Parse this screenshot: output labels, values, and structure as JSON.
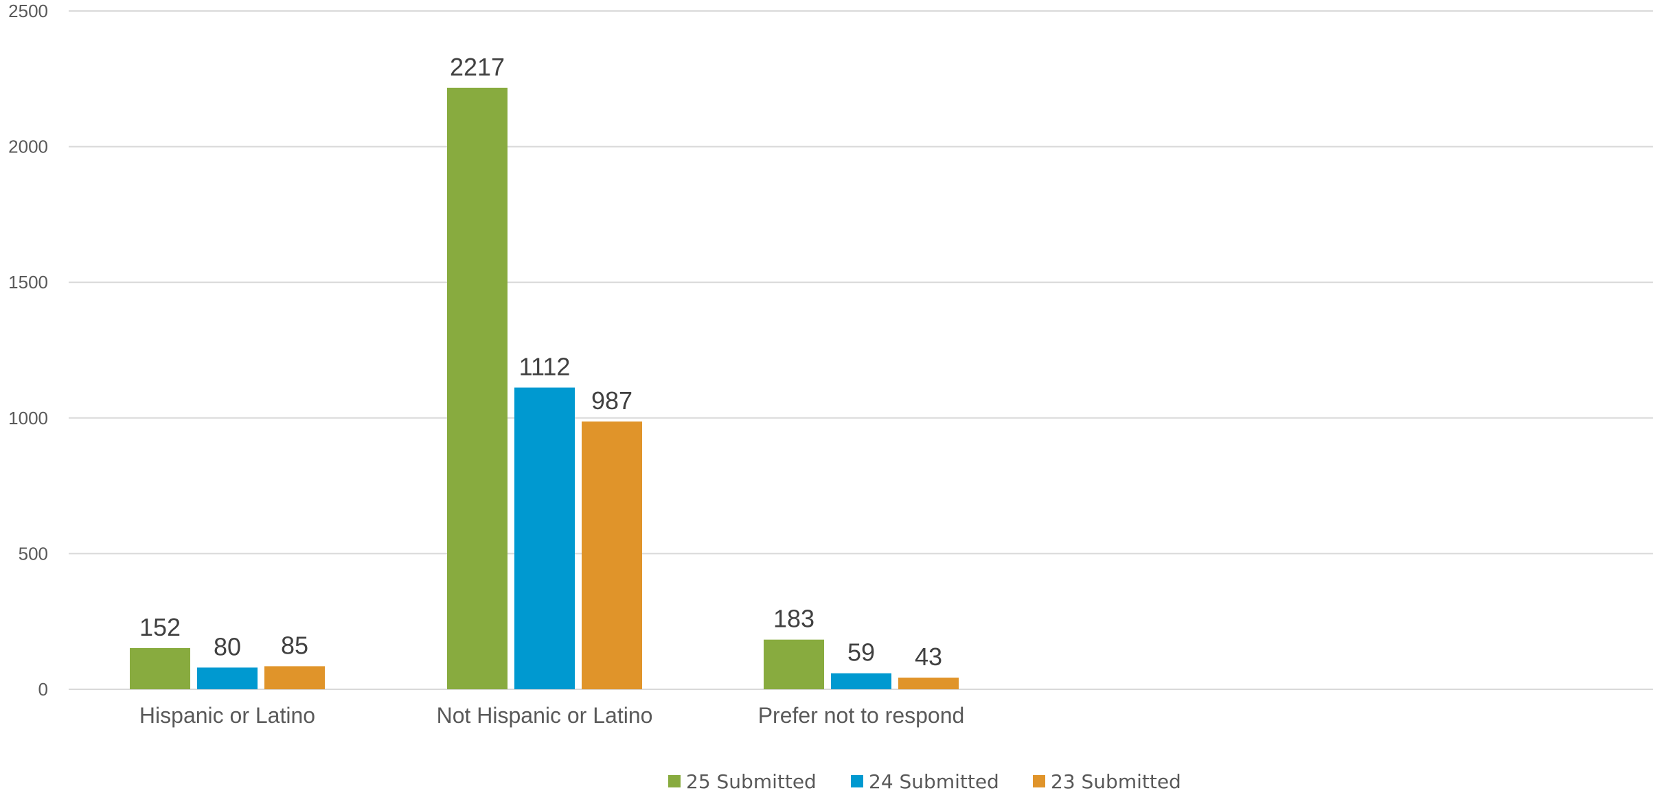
{
  "chart_data": {
    "type": "bar",
    "categories": [
      "Hispanic or Latino",
      "Not Hispanic or Latino",
      "Prefer not to respond"
    ],
    "series": [
      {
        "name": "25 Submitted",
        "values": [
          152,
          2217,
          183
        ],
        "color": "#88AB3F"
      },
      {
        "name": "24 Submitted",
        "values": [
          80,
          1112,
          59
        ],
        "color": "#0099D0"
      },
      {
        "name": "23 Submitted",
        "values": [
          85,
          987,
          43
        ],
        "color": "#E0942A"
      }
    ],
    "yticks": [
      0,
      500,
      1000,
      1500,
      2000,
      2500
    ],
    "ylim": [
      0,
      2500
    ],
    "grid": true,
    "legend": "bottom",
    "data_labels": true
  }
}
